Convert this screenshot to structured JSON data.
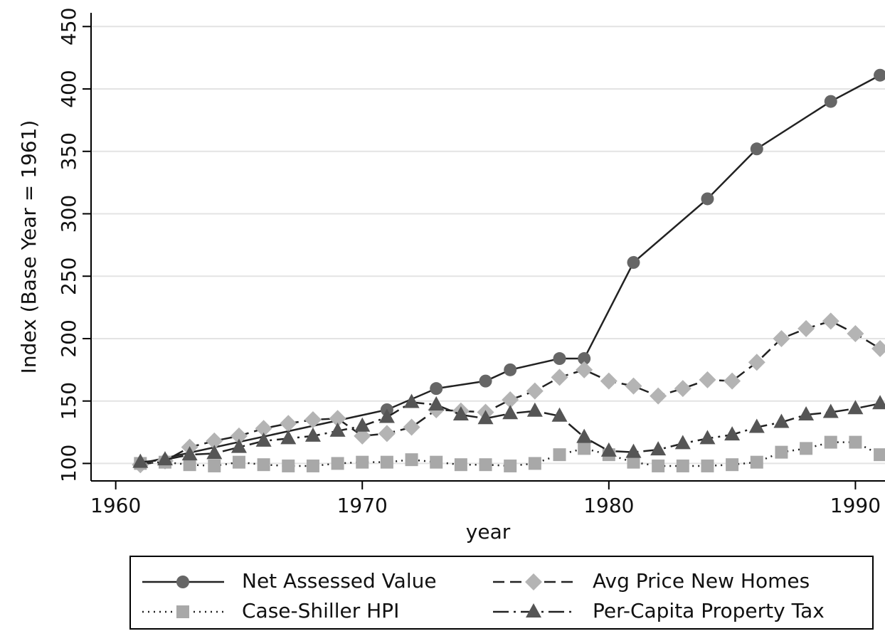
{
  "chart_data": {
    "type": "line",
    "xlabel": "year",
    "ylabel": "Index (Base Year = 1961)",
    "xlim": [
      1959,
      1991.2
    ],
    "xticks": [
      1960,
      1970,
      1980,
      1990
    ],
    "ylim": [
      86,
      461
    ],
    "yticks": [
      100,
      150,
      200,
      250,
      300,
      350,
      400,
      450
    ],
    "grid": true,
    "legend": "bottom",
    "series": [
      {
        "name": "Net Assessed Value",
        "color": "#666666",
        "line_color": "#222222",
        "line_style": "solid",
        "marker": "circle",
        "x": [
          1961,
          1971,
          1973,
          1975,
          1976,
          1978,
          1979,
          1981,
          1984,
          1986,
          1989,
          1991
        ],
        "values": [
          100,
          143,
          160,
          166,
          175,
          184,
          184,
          261,
          312,
          352,
          390,
          411
        ]
      },
      {
        "name": "Avg Price New Homes",
        "color": "#b4b4b4",
        "line_color": "#222222",
        "line_style": "dash",
        "marker": "diamond",
        "x": [
          1961,
          1962,
          1963,
          1964,
          1965,
          1966,
          1967,
          1968,
          1969,
          1970,
          1971,
          1972,
          1973,
          1974,
          1975,
          1976,
          1977,
          1978,
          1979,
          1980,
          1981,
          1982,
          1983,
          1984,
          1985,
          1986,
          1987,
          1988,
          1989,
          1990,
          1991
        ],
        "values": [
          99,
          102,
          113,
          118,
          122,
          128,
          132,
          135,
          136,
          122,
          124,
          129,
          143,
          142,
          141,
          151,
          158,
          169,
          175,
          166,
          162,
          154,
          160,
          167,
          166,
          181,
          200,
          208,
          214,
          204,
          192
        ]
      },
      {
        "name": "Case-Shiller HPI",
        "color": "#a8a8a8",
        "line_color": "#222222",
        "line_style": "dot",
        "marker": "square",
        "x": [
          1961,
          1962,
          1963,
          1964,
          1965,
          1966,
          1967,
          1968,
          1969,
          1970,
          1971,
          1972,
          1973,
          1974,
          1975,
          1976,
          1977,
          1978,
          1979,
          1980,
          1981,
          1982,
          1983,
          1984,
          1985,
          1986,
          1987,
          1988,
          1989,
          1990,
          1991
        ],
        "values": [
          100,
          101,
          99,
          98,
          101,
          99,
          98,
          98,
          100,
          101,
          101,
          103,
          101,
          99,
          99,
          98,
          100,
          107,
          112,
          107,
          101,
          98,
          98,
          98,
          99,
          101,
          109,
          112,
          117,
          117,
          107
        ]
      },
      {
        "name": "Per-Capita Property Tax",
        "color": "#555555",
        "line_color": "#222222",
        "line_style": "dashdot",
        "marker": "triangle",
        "x": [
          1961,
          1962,
          1963,
          1964,
          1965,
          1966,
          1967,
          1968,
          1969,
          1970,
          1971,
          1972,
          1973,
          1974,
          1975,
          1976,
          1977,
          1978,
          1979,
          1980,
          1981,
          1982,
          1983,
          1984,
          1985,
          1986,
          1987,
          1988,
          1989,
          1990,
          1991
        ],
        "values": [
          101,
          103,
          107,
          108,
          113,
          118,
          120,
          122,
          126,
          130,
          137,
          149,
          147,
          139,
          136,
          140,
          142,
          138,
          121,
          110,
          109,
          111,
          116,
          120,
          123,
          129,
          133,
          139,
          141,
          144,
          148
        ]
      }
    ]
  }
}
